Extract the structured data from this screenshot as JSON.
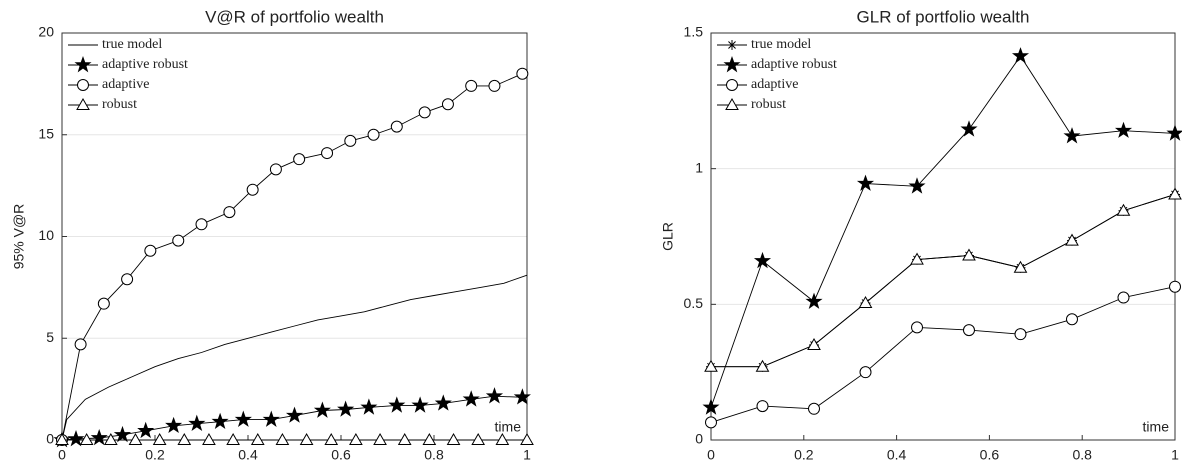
{
  "chart_data": [
    {
      "type": "line",
      "title": "V@R of portfolio wealth",
      "xlabel": "time",
      "ylabel": "95% V@R",
      "xlim": [
        0,
        1
      ],
      "ylim": [
        0,
        20
      ],
      "xticks": [
        0,
        0.2,
        0.4,
        0.6,
        0.8,
        1
      ],
      "yticks": [
        0,
        5,
        10,
        15,
        20
      ],
      "grid": true,
      "legend": "upper left",
      "series": [
        {
          "name": "true model",
          "color": "#000000",
          "marker": "none",
          "x": [
            0,
            0.01,
            0.05,
            0.1,
            0.15,
            0.2,
            0.25,
            0.3,
            0.35,
            0.4,
            0.45,
            0.5,
            0.55,
            0.6,
            0.65,
            0.7,
            0.75,
            0.8,
            0.85,
            0.9,
            0.95,
            1
          ],
          "values": [
            0,
            1.0,
            2.0,
            2.6,
            3.1,
            3.6,
            4.0,
            4.3,
            4.7,
            5.0,
            5.3,
            5.6,
            5.9,
            6.1,
            6.3,
            6.6,
            6.9,
            7.1,
            7.3,
            7.5,
            7.7,
            8.1
          ]
        },
        {
          "name": "adaptive robust",
          "color": "#000000",
          "marker": "star",
          "x": [
            0,
            0.03,
            0.08,
            0.13,
            0.18,
            0.24,
            0.29,
            0.34,
            0.39,
            0.45,
            0.5,
            0.56,
            0.61,
            0.66,
            0.72,
            0.77,
            0.82,
            0.88,
            0.93,
            0.99
          ],
          "values": [
            0,
            0.05,
            0.1,
            0.25,
            0.45,
            0.7,
            0.8,
            0.9,
            1.0,
            1.0,
            1.2,
            1.45,
            1.5,
            1.6,
            1.7,
            1.7,
            1.8,
            2.0,
            2.15,
            2.1
          ]
        },
        {
          "name": "adaptive",
          "color": "#000000",
          "marker": "circle",
          "x": [
            0,
            0.04,
            0.09,
            0.14,
            0.19,
            0.25,
            0.3,
            0.36,
            0.41,
            0.46,
            0.51,
            0.57,
            0.62,
            0.67,
            0.72,
            0.78,
            0.83,
            0.88,
            0.93,
            0.99
          ],
          "values": [
            0,
            4.7,
            6.7,
            7.9,
            9.3,
            9.8,
            10.6,
            11.2,
            12.3,
            13.3,
            13.8,
            14.1,
            14.7,
            15.0,
            15.4,
            16.1,
            16.5,
            17.4,
            17.4,
            18.0
          ]
        },
        {
          "name": "robust",
          "color": "#000000",
          "marker": "triangle",
          "x": [
            0,
            0.053,
            0.105,
            0.158,
            0.21,
            0.263,
            0.316,
            0.368,
            0.421,
            0.474,
            0.526,
            0.579,
            0.632,
            0.684,
            0.737,
            0.79,
            0.842,
            0.895,
            0.947,
            1
          ],
          "values": [
            0,
            0,
            0,
            0,
            0,
            0,
            0,
            0,
            0,
            0,
            0,
            0,
            0,
            0,
            0,
            0,
            0,
            0,
            0,
            0
          ]
        }
      ]
    },
    {
      "type": "line",
      "title": "GLR of portfolio wealth",
      "xlabel": "time",
      "ylabel": "GLR",
      "xlim": [
        0,
        1
      ],
      "ylim": [
        0,
        1.5
      ],
      "xticks": [
        0,
        0.2,
        0.4,
        0.6,
        0.8,
        1
      ],
      "yticks": [
        0,
        0.5,
        1,
        1.5
      ],
      "grid": true,
      "legend": "upper left",
      "x": [
        0,
        0.111,
        0.222,
        0.333,
        0.444,
        0.556,
        0.667,
        0.778,
        0.889,
        1
      ],
      "series": [
        {
          "name": "true model",
          "color": "#000000",
          "marker": "asterisk",
          "values": [
            0.27,
            0.27,
            0.35,
            0.505,
            0.665,
            0.68,
            0.635,
            0.735,
            0.845,
            0.905
          ]
        },
        {
          "name": "adaptive robust",
          "color": "#000000",
          "marker": "star",
          "values": [
            0.12,
            0.66,
            0.51,
            0.945,
            0.935,
            1.145,
            1.415,
            1.12,
            1.14,
            1.13
          ]
        },
        {
          "name": "adaptive",
          "color": "#000000",
          "marker": "circle",
          "values": [
            0.065,
            0.125,
            0.115,
            0.25,
            0.415,
            0.405,
            0.39,
            0.445,
            0.525,
            0.565
          ]
        },
        {
          "name": "robust",
          "color": "#000000",
          "marker": "triangle",
          "values": [
            0.27,
            0.27,
            0.35,
            0.505,
            0.665,
            0.68,
            0.635,
            0.735,
            0.845,
            0.905
          ]
        }
      ]
    }
  ]
}
